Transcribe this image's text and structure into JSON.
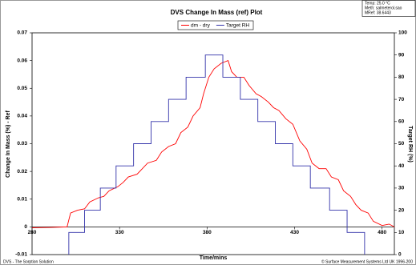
{
  "chart_data": {
    "type": "line",
    "title": "DVS Change In Mass (ref) Plot",
    "info": [
      "Temp: 25.0 °C",
      "Meth: salmeterol.sao",
      "MRef: 38.6443"
    ],
    "x_label": "Time/mins",
    "y_label": "Change In Mass (%) - Ref",
    "y2_label": "Target RH (%)",
    "footer_left": "DVS - The Sorption Solution",
    "footer_right": "© Surface Measurement Systems Ltd UK 1996-200",
    "xlim": [
      280,
      487
    ],
    "xticks": [
      280,
      330,
      380,
      430,
      480
    ],
    "ylim": [
      -0.01,
      0.07
    ],
    "yticks": [
      -0.01,
      0,
      0.01,
      0.02,
      0.03,
      0.04,
      0.05,
      0.06,
      0.07
    ],
    "y2lim": [
      0,
      100
    ],
    "y2ticks": [
      0,
      10,
      20,
      30,
      40,
      50,
      60,
      70,
      80,
      90,
      100
    ],
    "legend": "top",
    "series": [
      {
        "name": "dm - dry",
        "color": "#ff0000",
        "x": [
          280,
          290,
          300,
          302,
          306,
          310,
          313,
          318,
          321,
          324,
          329,
          332,
          335,
          340,
          343,
          346,
          351,
          354,
          358,
          362,
          365,
          369,
          372,
          376,
          378,
          381,
          384,
          388,
          392,
          394,
          397,
          401,
          404,
          408,
          411,
          415,
          418,
          421,
          425,
          429,
          433,
          437,
          440,
          444,
          448,
          451,
          455,
          458,
          462,
          465,
          468,
          472,
          475,
          480,
          484,
          487
        ],
        "values": [
          -0.0003,
          -0.0002,
          0.0,
          0.005,
          0.006,
          0.0065,
          0.009,
          0.0105,
          0.011,
          0.013,
          0.0145,
          0.016,
          0.018,
          0.019,
          0.021,
          0.023,
          0.024,
          0.027,
          0.029,
          0.03,
          0.034,
          0.036,
          0.04,
          0.043,
          0.048,
          0.054,
          0.057,
          0.059,
          0.06,
          0.056,
          0.054,
          0.054,
          0.051,
          0.048,
          0.047,
          0.045,
          0.043,
          0.042,
          0.039,
          0.037,
          0.031,
          0.028,
          0.023,
          0.021,
          0.021,
          0.018,
          0.017,
          0.013,
          0.011,
          0.008,
          0.006,
          0.005,
          0.002,
          0.0005,
          0.001,
          0.0
        ]
      },
      {
        "name": "Target RH",
        "color": "#3333aa",
        "axis": "y2",
        "x": [
          301,
          301,
          310,
          310,
          319,
          319,
          328,
          328,
          338,
          338,
          348,
          348,
          358,
          358,
          368,
          368,
          379,
          379,
          389,
          389,
          399,
          399,
          409,
          409,
          419,
          419,
          429,
          429,
          439,
          439,
          450,
          450,
          460,
          460,
          470,
          470
        ],
        "values": [
          0,
          10,
          10,
          20,
          20,
          30,
          30,
          40,
          40,
          50,
          50,
          60,
          60,
          70,
          70,
          80,
          80,
          90,
          90,
          80,
          80,
          70,
          70,
          60,
          60,
          50,
          50,
          40,
          40,
          30,
          30,
          20,
          20,
          10,
          10,
          0
        ]
      }
    ]
  }
}
